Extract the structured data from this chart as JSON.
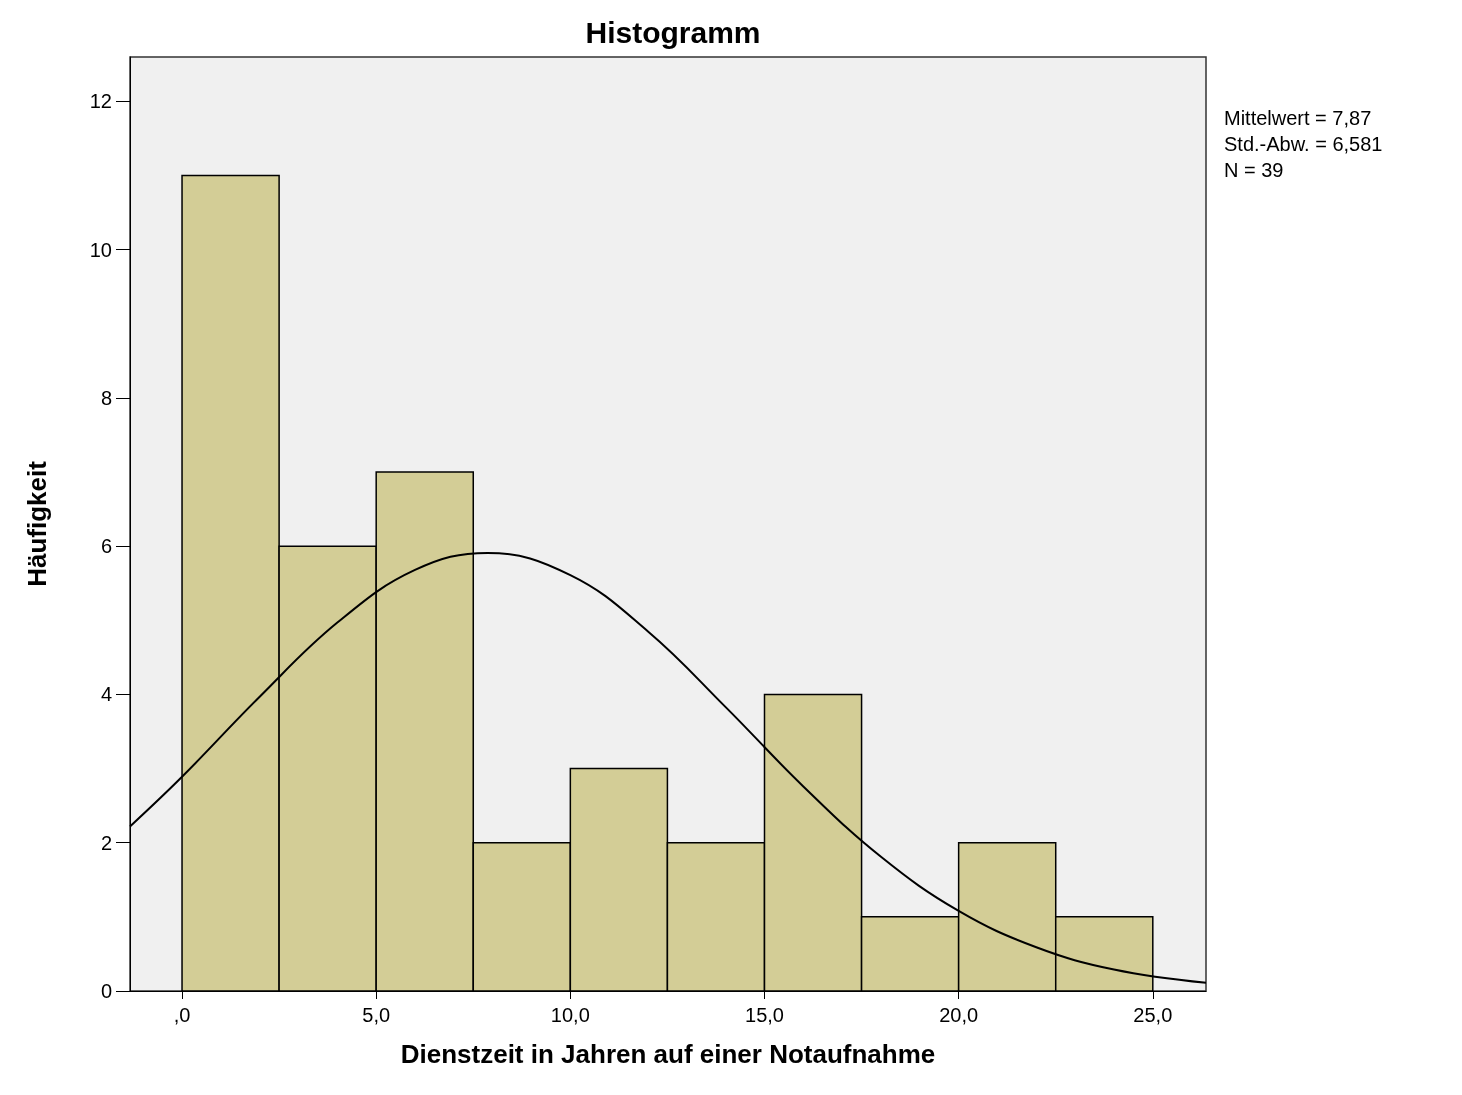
{
  "chart_data": {
    "type": "histogram",
    "title": "Histogramm",
    "xlabel": "Dienstzeit in Jahren auf einer Notaufnahme",
    "ylabel": "Häufigkeit",
    "bins": [
      0,
      2.5,
      5,
      7.5,
      10,
      12.5,
      15,
      17.5,
      20,
      22.5,
      25
    ],
    "series": [
      {
        "color": "#d3cd96",
        "values": [
          11,
          6,
          7,
          2,
          3,
          2,
          4,
          1,
          2,
          1
        ]
      },
      {
        "type": "line",
        "color": "#000000",
        "x": [
          -1.34,
          0,
          2,
          4,
          6,
          7.87,
          10,
          12,
          14,
          16,
          18,
          20,
          22,
          24,
          26.37
        ],
        "values": [
          2.22,
          2.89,
          3.97,
          4.97,
          5.68,
          5.91,
          5.61,
          4.85,
          3.83,
          2.76,
          1.81,
          1.08,
          0.59,
          0.29,
          0.11
        ]
      }
    ],
    "xlim": [
      -1.34,
      26.37
    ],
    "xticks": [
      {
        "value": 0,
        "label": ",0"
      },
      {
        "value": 5,
        "label": "5,0"
      },
      {
        "value": 10,
        "label": "10,0"
      },
      {
        "value": 15,
        "label": "15,0"
      },
      {
        "value": 20,
        "label": "20,0"
      },
      {
        "value": 25,
        "label": "25,0"
      }
    ],
    "ylim": [
      0,
      12.6
    ],
    "yticks": [
      0,
      2,
      4,
      6,
      8,
      10,
      12
    ],
    "grid": false,
    "annotations": [
      "Mittelwert = 7,87",
      "Std.-Abw. = 6,581",
      "N = 39"
    ]
  }
}
